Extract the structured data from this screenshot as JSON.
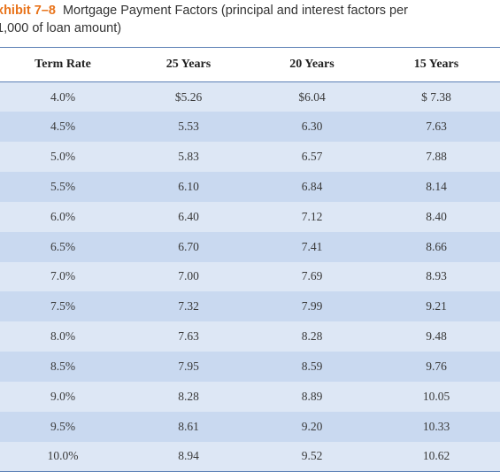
{
  "caption": {
    "exhibit_label": "xhibit 7–8",
    "title_line1": "Mortgage Payment Factors (principal and interest factors per",
    "title_line2": "1,000 of loan amount)"
  },
  "table": {
    "headers": [
      "Term Rate",
      "25 Years",
      "20 Years",
      "15 Years"
    ],
    "rows": [
      [
        "4.0%",
        "$5.26",
        "$6.04",
        "$ 7.38"
      ],
      [
        "4.5%",
        "5.53",
        "6.30",
        "7.63"
      ],
      [
        "5.0%",
        "5.83",
        "6.57",
        "7.88"
      ],
      [
        "5.5%",
        "6.10",
        "6.84",
        "8.14"
      ],
      [
        "6.0%",
        "6.40",
        "7.12",
        "8.40"
      ],
      [
        "6.5%",
        "6.70",
        "7.41",
        "8.66"
      ],
      [
        "7.0%",
        "7.00",
        "7.69",
        "8.93"
      ],
      [
        "7.5%",
        "7.32",
        "7.99",
        "9.21"
      ],
      [
        "8.0%",
        "7.63",
        "8.28",
        "9.48"
      ],
      [
        "8.5%",
        "7.95",
        "8.59",
        "9.76"
      ],
      [
        "9.0%",
        "8.28",
        "8.89",
        "10.05"
      ],
      [
        "9.5%",
        "8.61",
        "9.20",
        "10.33"
      ],
      [
        "10.0%",
        "8.94",
        "9.52",
        "10.62"
      ]
    ]
  },
  "colors": {
    "exhibit_accent": "#e8731a",
    "row_light": "#dde7f5",
    "row_dark": "#c9d9f0",
    "rule": "#5b7fb5"
  }
}
